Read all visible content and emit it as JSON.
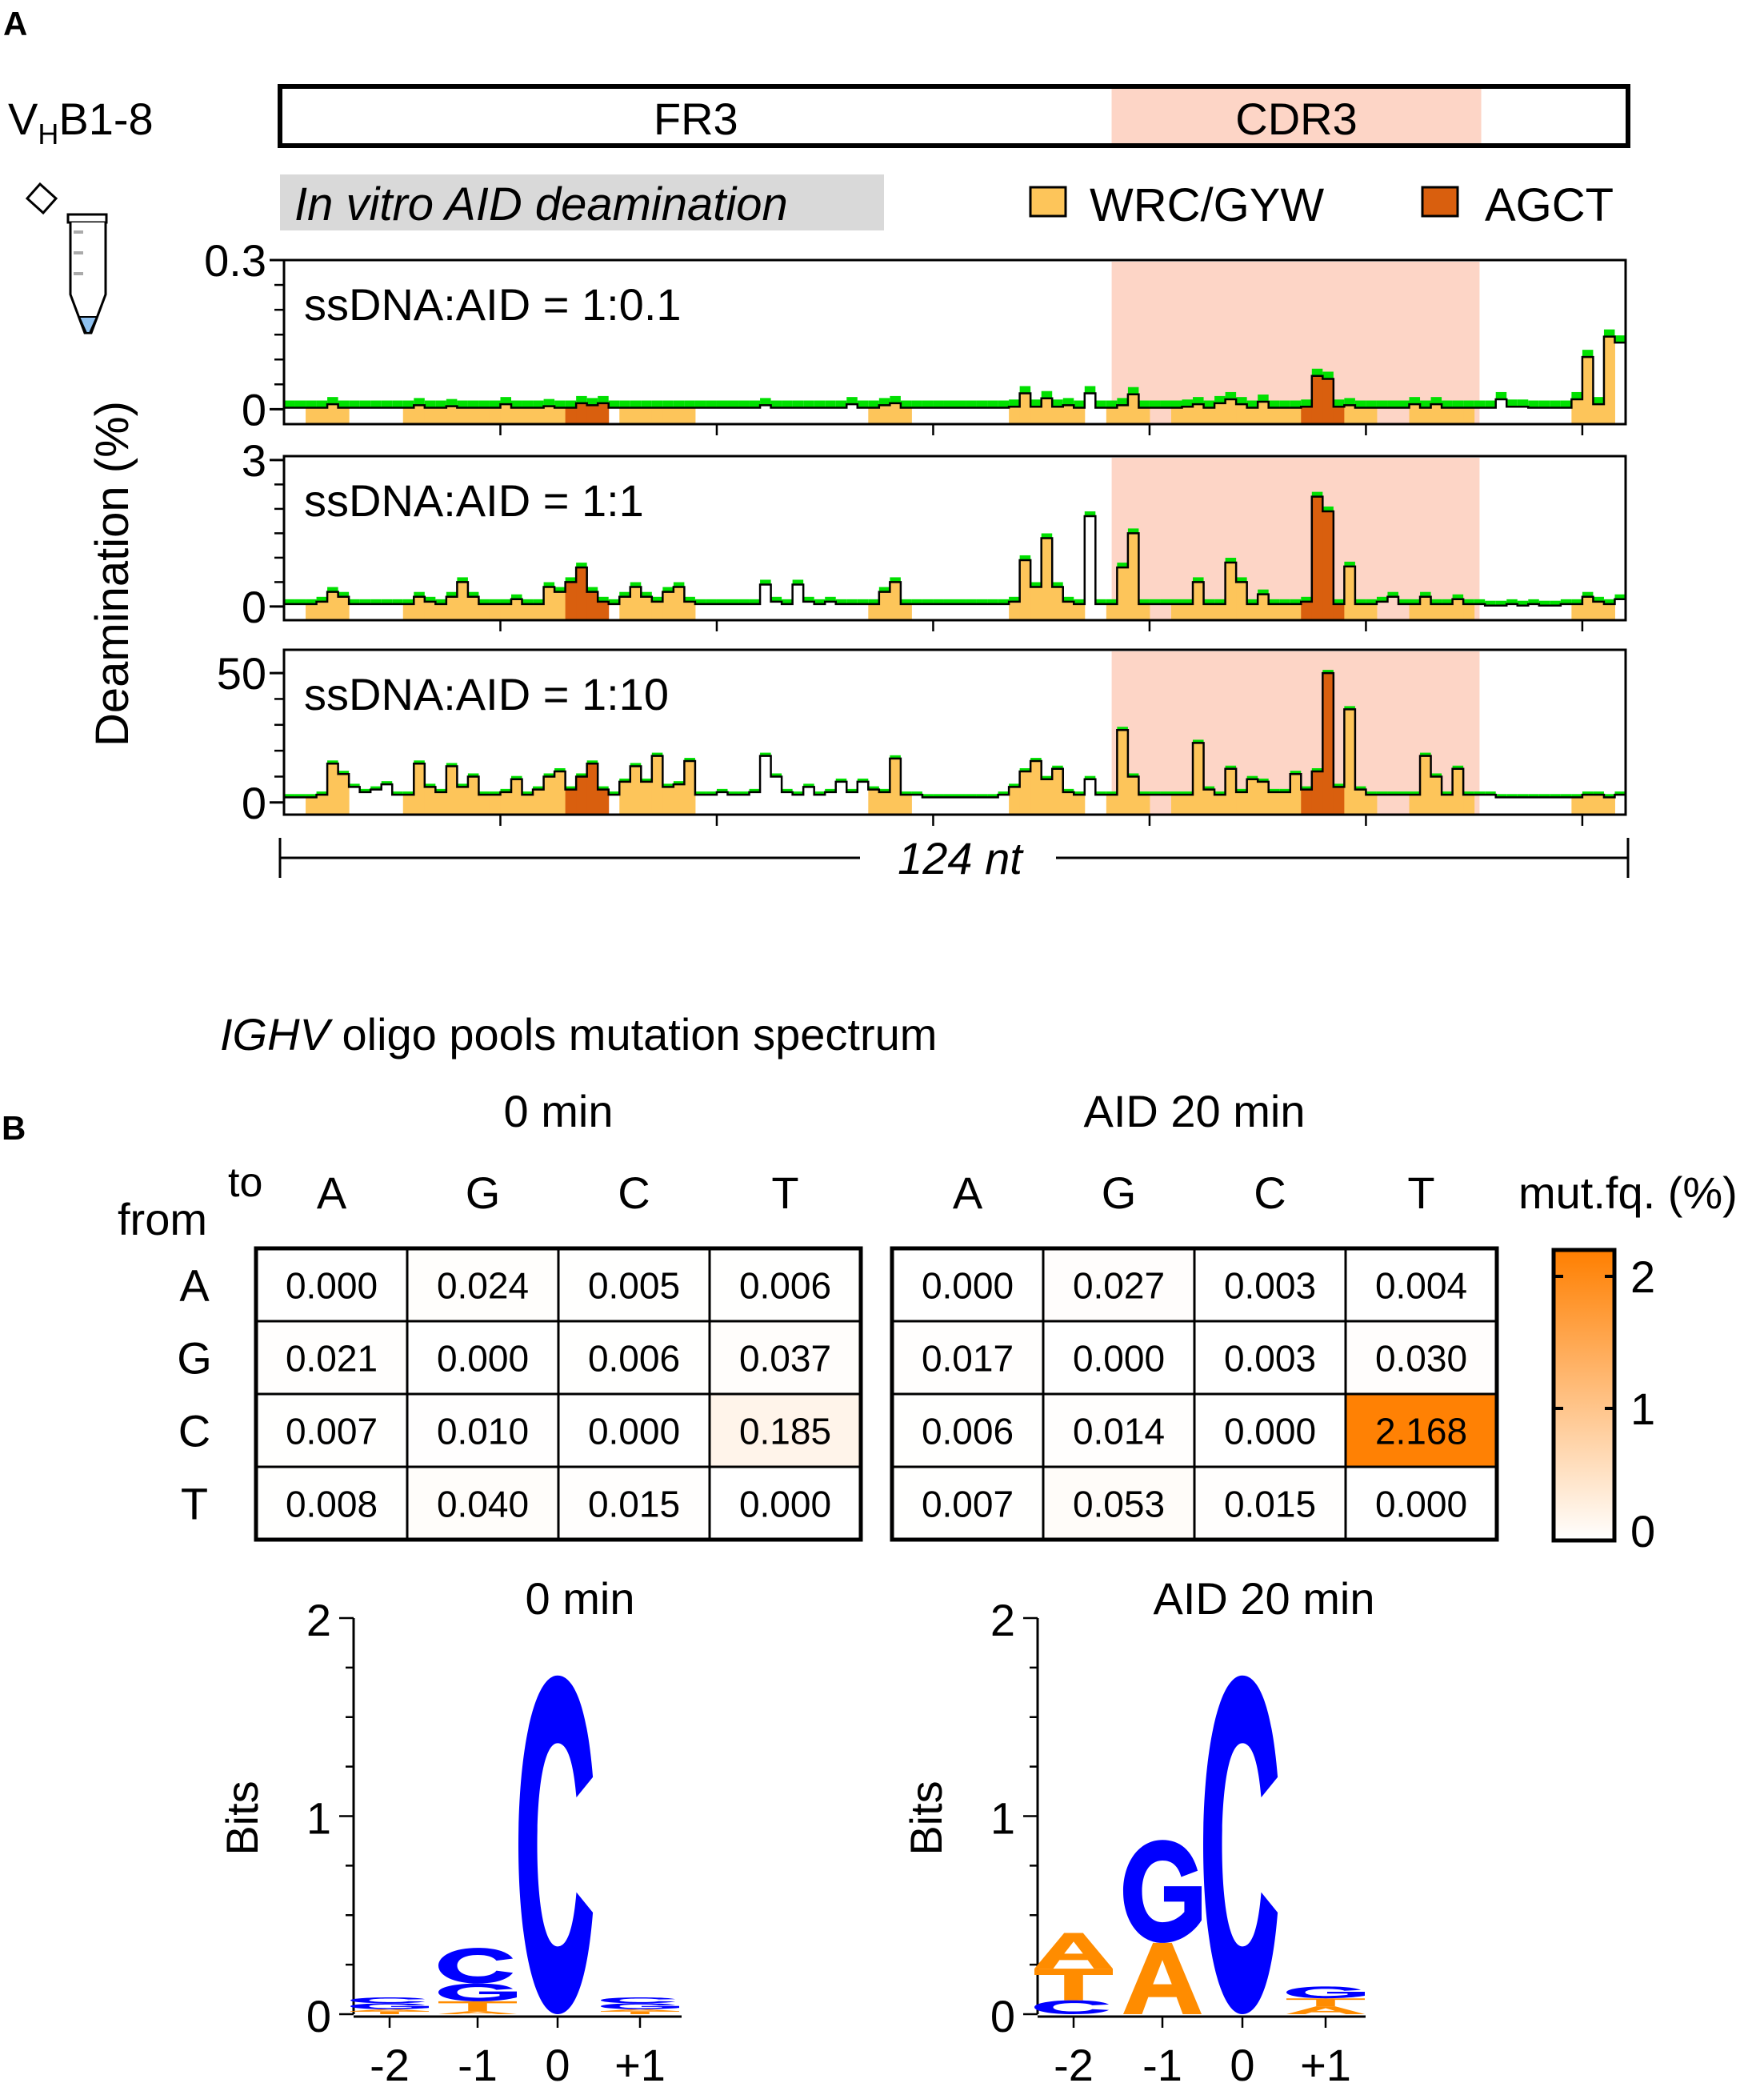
{
  "panel_a": {
    "label": "A",
    "gene": {
      "main1": "V",
      "sub": "H",
      "main2": "B1-8"
    },
    "regions": [
      {
        "name": "FR3",
        "start": 0,
        "end": 76.5
      },
      {
        "name": "CDR3",
        "start": 76.5,
        "end": 110.5
      }
    ],
    "assay_label": "In vitro AID deamination",
    "legend": [
      {
        "label": "WRC/GYW",
        "color": "#FDC55A"
      },
      {
        "label": "AGCT",
        "color": "#D95F0E"
      }
    ],
    "ylabel": "Deamination (%)",
    "length_label": "124 nt",
    "tube_icon": "microcentrifuge-tube-icon",
    "colors": {
      "cdr3_shade": "#FDD5C6",
      "wrc": "#FDC55A",
      "agct": "#D95F0E",
      "cap": "#00E000",
      "trace": "#000000"
    }
  },
  "chart_data": [
    {
      "type": "area",
      "title": "ssDNA:AID = 1:0.1",
      "ylim": [
        -0.03,
        0.3
      ],
      "yticks": [
        {
          "value": 0,
          "label": "0"
        },
        {
          "value": 0.3,
          "label": "0.3"
        }
      ],
      "minor_step": 0.05,
      "x_tick_step": 20,
      "values": [
        0.003,
        0.003,
        0.003,
        0.003,
        0.01,
        0.003,
        0.003,
        0.003,
        0.003,
        0.003,
        0.003,
        0.003,
        0.008,
        0.003,
        0.003,
        0.006,
        0.003,
        0.003,
        0.003,
        0.003,
        0.01,
        0.003,
        0.003,
        0.003,
        0.006,
        0.003,
        0.003,
        0.012,
        0.008,
        0.012,
        0.003,
        0.003,
        0.003,
        0.003,
        0.003,
        0.003,
        0.003,
        0.003,
        0.003,
        0.003,
        0.003,
        0.003,
        0.003,
        0.003,
        0.008,
        0.003,
        0.003,
        0.003,
        0.003,
        0.003,
        0.003,
        0.003,
        0.01,
        0.003,
        0.003,
        0.008,
        0.012,
        0.003,
        0.003,
        0.003,
        0.003,
        0.003,
        0.003,
        0.003,
        0.003,
        0.003,
        0.003,
        0.005,
        0.032,
        0.005,
        0.022,
        0.005,
        0.008,
        0.003,
        0.032,
        0.003,
        0.003,
        0.008,
        0.03,
        0.003,
        0.003,
        0.003,
        0.003,
        0.005,
        0.01,
        0.003,
        0.012,
        0.02,
        0.01,
        0.003,
        0.015,
        0.003,
        0.003,
        0.003,
        0.005,
        0.067,
        0.061,
        0.005,
        0.008,
        0.003,
        0.003,
        0.003,
        0.003,
        0.003,
        0.01,
        0.003,
        0.01,
        0.003,
        0.003,
        0.003,
        0.003,
        0.003,
        0.02,
        0.005,
        0.005,
        0.003,
        0.003,
        0.003,
        0.003,
        0.02,
        0.105,
        0.01,
        0.146,
        0.134
      ]
    },
    {
      "type": "area",
      "title": "ssDNA:AID = 1:1",
      "ylim": [
        -0.28,
        3.08
      ],
      "yticks": [
        {
          "value": 0,
          "label": "0"
        },
        {
          "value": 3,
          "label": "3"
        }
      ],
      "minor_step": 0.5,
      "x_tick_step": 20,
      "values": [
        0.05,
        0.05,
        0.05,
        0.1,
        0.3,
        0.2,
        0.05,
        0.05,
        0.05,
        0.05,
        0.05,
        0.05,
        0.2,
        0.1,
        0.05,
        0.2,
        0.5,
        0.2,
        0.05,
        0.05,
        0.05,
        0.15,
        0.05,
        0.05,
        0.4,
        0.3,
        0.5,
        0.8,
        0.3,
        0.1,
        0.05,
        0.2,
        0.4,
        0.2,
        0.1,
        0.3,
        0.4,
        0.1,
        0.05,
        0.05,
        0.05,
        0.05,
        0.05,
        0.05,
        0.45,
        0.1,
        0.05,
        0.45,
        0.1,
        0.05,
        0.1,
        0.05,
        0.05,
        0.05,
        0.05,
        0.3,
        0.5,
        0.05,
        0.05,
        0.05,
        0.05,
        0.05,
        0.05,
        0.05,
        0.05,
        0.05,
        0.05,
        0.1,
        0.95,
        0.4,
        1.4,
        0.4,
        0.1,
        0.05,
        1.85,
        0.05,
        0.05,
        0.8,
        1.5,
        0.05,
        0.05,
        0.05,
        0.05,
        0.05,
        0.5,
        0.05,
        0.05,
        0.9,
        0.5,
        0.05,
        0.25,
        0.05,
        0.05,
        0.05,
        0.1,
        2.25,
        1.95,
        0.05,
        0.82,
        0.05,
        0.05,
        0.1,
        0.2,
        0.05,
        0.05,
        0.2,
        0.05,
        0.05,
        0.15,
        0.05,
        0.05,
        0.02,
        0.02,
        0.05,
        0.02,
        0.05,
        0.02,
        0.02,
        0.05,
        0.05,
        0.2,
        0.1,
        0.05,
        0.15
      ]
    },
    {
      "type": "area",
      "title": "ssDNA:AID = 1:10",
      "ylim": [
        -4.7,
        59
      ],
      "yticks": [
        {
          "value": 0,
          "label": "0"
        },
        {
          "value": 50,
          "label": "50"
        }
      ],
      "minor_step": 10,
      "x_tick_step": 20,
      "values": [
        2,
        2,
        2,
        3,
        15,
        11,
        6,
        4,
        5,
        7,
        3,
        3,
        15,
        6,
        4,
        14,
        6,
        10,
        3,
        3,
        4,
        9,
        3,
        5,
        10,
        12,
        5,
        10,
        15,
        5,
        3,
        8,
        14,
        8,
        18,
        6,
        7,
        16,
        3,
        3,
        4,
        3,
        3,
        4,
        18,
        10,
        4,
        3,
        6,
        3,
        4,
        8,
        4,
        8,
        5,
        4,
        17,
        3,
        3,
        2,
        2,
        2,
        2,
        2,
        2,
        2,
        3,
        6,
        12,
        16,
        9,
        13,
        4,
        3,
        9,
        3,
        3,
        28,
        10,
        3,
        3,
        3,
        3,
        3,
        23,
        5,
        3,
        13,
        4,
        9,
        8,
        4,
        4,
        11,
        5,
        12,
        50,
        6,
        36,
        5,
        3,
        3,
        3,
        3,
        3,
        18,
        10,
        3,
        13,
        3,
        3,
        3,
        2,
        2,
        2,
        2,
        2,
        2,
        2,
        2,
        3,
        3,
        2,
        3
      ]
    }
  ],
  "motifs": [
    {
      "type": "WRC/GYW",
      "start": 2,
      "end": 6
    },
    {
      "type": "WRC/GYW",
      "start": 11,
      "end": 15
    },
    {
      "type": "WRC/GYW",
      "start": 15,
      "end": 19
    },
    {
      "type": "WRC/GYW",
      "start": 19,
      "end": 23
    },
    {
      "type": "WRC/GYW",
      "start": 23,
      "end": 26
    },
    {
      "type": "AGCT",
      "start": 26,
      "end": 30
    },
    {
      "type": "WRC/GYW",
      "start": 31,
      "end": 38
    },
    {
      "type": "WRC/GYW",
      "start": 54,
      "end": 58
    },
    {
      "type": "WRC/GYW",
      "start": 67,
      "end": 74
    },
    {
      "type": "WRC/GYW",
      "start": 76,
      "end": 80
    },
    {
      "type": "WRC/GYW",
      "start": 82,
      "end": 89
    },
    {
      "type": "WRC/GYW",
      "start": 89,
      "end": 94
    },
    {
      "type": "AGCT",
      "start": 94,
      "end": 98
    },
    {
      "type": "WRC/GYW",
      "start": 98,
      "end": 101
    },
    {
      "type": "WRC/GYW",
      "start": 104,
      "end": 110
    },
    {
      "type": "WRC/GYW",
      "start": 119,
      "end": 123
    }
  ],
  "panel_b": {
    "label": "B",
    "title_italic": "IGHV",
    "title_rest": " oligo pools mutation spectrum",
    "to_label": "to",
    "from_label": "from",
    "bases": [
      "A",
      "G",
      "C",
      "T"
    ],
    "colorbar": {
      "title": "mut.fq. (%)",
      "ticks": [
        "0",
        "1",
        "2"
      ],
      "max": 2.2,
      "color_low": "#FFFFFF",
      "color_high": "#FF7F00"
    },
    "heatmaps": [
      {
        "title": "0 min",
        "values": [
          [
            "0.000",
            "0.024",
            "0.005",
            "0.006"
          ],
          [
            "0.021",
            "0.000",
            "0.006",
            "0.037"
          ],
          [
            "0.007",
            "0.010",
            "0.000",
            "0.185"
          ],
          [
            "0.008",
            "0.040",
            "0.015",
            "0.000"
          ]
        ]
      },
      {
        "title": "AID 20 min",
        "values": [
          [
            "0.000",
            "0.027",
            "0.003",
            "0.004"
          ],
          [
            "0.017",
            "0.000",
            "0.003",
            "0.030"
          ],
          [
            "0.006",
            "0.014",
            "0.000",
            "2.168"
          ],
          [
            "0.007",
            "0.053",
            "0.015",
            "0.000"
          ]
        ]
      }
    ],
    "logo_ylabel": "Bits",
    "logo_yticks": [
      "0",
      "1",
      "2"
    ],
    "logo_positions": [
      "-2",
      "-1",
      "0",
      "+1"
    ],
    "letter_colors": {
      "A": "#FF8C00",
      "T": "#FF8C00",
      "C": "#0000FF",
      "G": "#0000FF"
    },
    "logos": [
      {
        "title": "0 min",
        "stacks": [
          [
            {
              "letter": "T",
              "bits": 0.015
            },
            {
              "letter": "A",
              "bits": 0.01
            },
            {
              "letter": "G",
              "bits": 0.03
            },
            {
              "letter": "C",
              "bits": 0.03
            }
          ],
          [
            {
              "letter": "A",
              "bits": 0.015
            },
            {
              "letter": "T",
              "bits": 0.05
            },
            {
              "letter": "G",
              "bits": 0.09
            },
            {
              "letter": "C",
              "bits": 0.18
            }
          ],
          [
            {
              "letter": "C",
              "bits": 1.71
            }
          ],
          [
            {
              "letter": "T",
              "bits": 0.015
            },
            {
              "letter": "A",
              "bits": 0.01
            },
            {
              "letter": "G",
              "bits": 0.03
            },
            {
              "letter": "C",
              "bits": 0.03
            }
          ]
        ]
      },
      {
        "title": "AID 20 min",
        "stacks": [
          [
            {
              "letter": "C",
              "bits": 0.07
            },
            {
              "letter": "T",
              "bits": 0.16
            },
            {
              "letter": "A",
              "bits": 0.18
            }
          ],
          [
            {
              "letter": "A",
              "bits": 0.36
            },
            {
              "letter": "G",
              "bits": 0.52
            }
          ],
          [
            {
              "letter": "C",
              "bits": 1.71
            }
          ],
          [
            {
              "letter": "A",
              "bits": 0.04
            },
            {
              "letter": "T",
              "bits": 0.04
            },
            {
              "letter": "G",
              "bits": 0.06
            }
          ]
        ]
      }
    ]
  }
}
